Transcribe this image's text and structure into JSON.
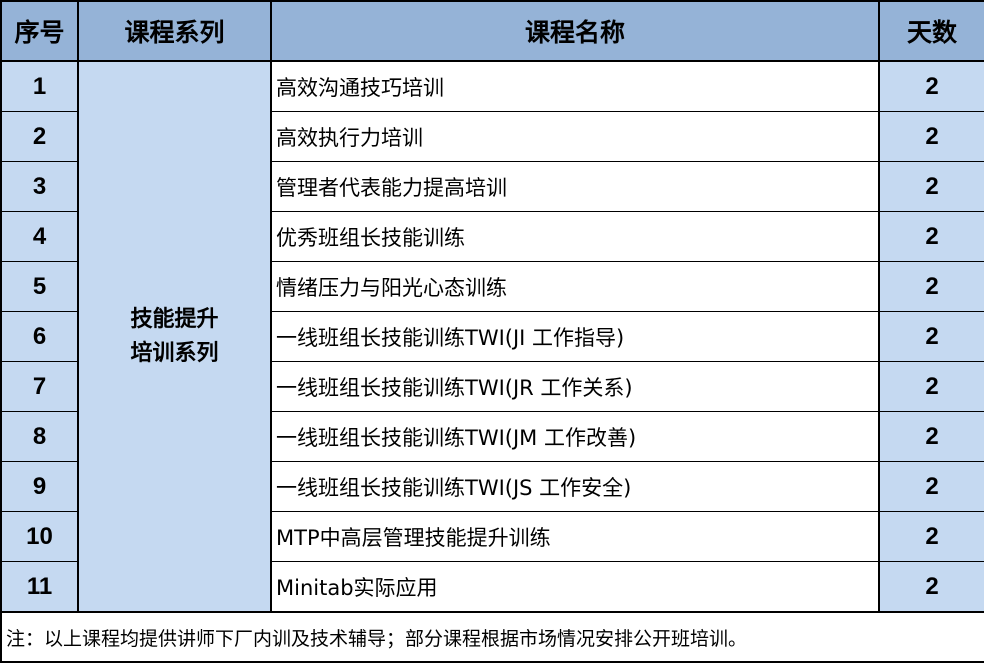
{
  "headers": {
    "no": "序号",
    "series": "课程系列",
    "name": "课程名称",
    "days": "天数"
  },
  "series_label": {
    "line1": "技能提升",
    "line2": "培训系列"
  },
  "rows": [
    {
      "no": "1",
      "name": "高效沟通技巧培训",
      "days": "2"
    },
    {
      "no": "2",
      "name": "高效执行力培训",
      "days": "2"
    },
    {
      "no": "3",
      "name": "管理者代表能力提高培训",
      "days": "2"
    },
    {
      "no": "4",
      "name": "优秀班组长技能训练",
      "days": "2"
    },
    {
      "no": "5",
      "name": "情绪压力与阳光心态训练",
      "days": "2"
    },
    {
      "no": "6",
      "name": "一线班组长技能训练TWI(JI 工作指导)",
      "days": "2"
    },
    {
      "no": "7",
      "name": "一线班组长技能训练TWI(JR 工作关系)",
      "days": "2"
    },
    {
      "no": "8",
      "name": "一线班组长技能训练TWI(JM 工作改善)",
      "days": "2"
    },
    {
      "no": "9",
      "name": "一线班组长技能训练TWI(JS 工作安全)",
      "days": "2"
    },
    {
      "no": "10",
      "name": "MTP中高层管理技能提升训练",
      "days": "2"
    },
    {
      "no": "11",
      "name": "Minitab实际应用",
      "days": "2"
    }
  ],
  "footnote": "注：以上课程均提供讲师下厂内训及技术辅导；部分课程根据市场情况安排公开班培训。",
  "colors": {
    "header_bg": "#95b3d7",
    "cell_bg": "#c5d9f1"
  }
}
